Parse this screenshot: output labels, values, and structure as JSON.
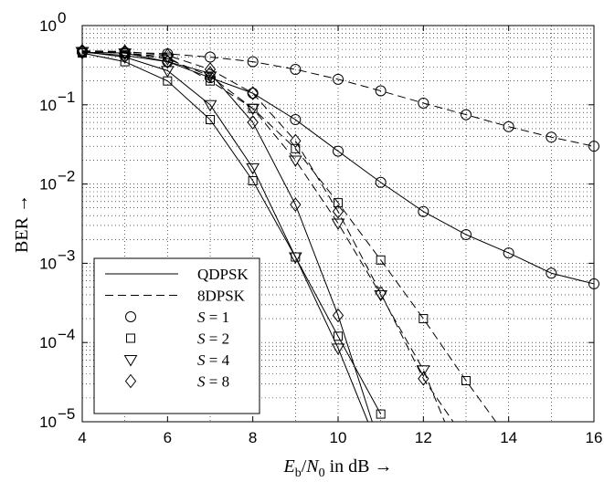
{
  "chart_data": {
    "type": "line",
    "xlabel": "E_b/N_0 in dB →",
    "xlabel_parts": {
      "e": "E",
      "e_sub": "b",
      "slash": "/",
      "n": "N",
      "n_sub": "0",
      "rest": " in dB →"
    },
    "ylabel": "BER →",
    "xlim": [
      4,
      16
    ],
    "ylim": [
      1e-05,
      1
    ],
    "yscale": "log",
    "grid": true,
    "legend_position": "bottom-left",
    "x_ticks": [
      "4",
      "6",
      "8",
      "10",
      "12",
      "14",
      "16"
    ],
    "y_ticks": [
      {
        "base": "10",
        "exp": "0"
      },
      {
        "base": "10",
        "exp": "−1"
      },
      {
        "base": "10",
        "exp": "−2"
      },
      {
        "base": "10",
        "exp": "−3"
      },
      {
        "base": "10",
        "exp": "−4"
      },
      {
        "base": "10",
        "exp": "−5"
      }
    ],
    "legend": {
      "line_styles": [
        {
          "label": "QDPSK",
          "dash": "solid"
        },
        {
          "label": "8DPSK",
          "dash": "dashed"
        }
      ],
      "markers": [
        {
          "symbol": "S",
          "eq": " = ",
          "value": "1",
          "marker": "circle"
        },
        {
          "symbol": "S",
          "eq": " = ",
          "value": "2",
          "marker": "square"
        },
        {
          "symbol": "S",
          "eq": " = ",
          "value": "4",
          "marker": "triangle"
        },
        {
          "symbol": "S",
          "eq": " = ",
          "value": "8",
          "marker": "diamond"
        }
      ]
    },
    "series": [
      {
        "modulation": "QDPSK",
        "S": 1,
        "dash": "solid",
        "marker": "circle",
        "x": [
          4,
          5,
          6,
          7,
          8,
          9,
          10,
          11,
          12,
          13,
          14,
          15,
          16
        ],
        "y": [
          0.46,
          0.42,
          0.35,
          0.22,
          0.14,
          0.065,
          0.026,
          0.0105,
          0.0045,
          0.0023,
          0.00135,
          0.00075,
          0.00055
        ]
      },
      {
        "modulation": "QDPSK",
        "S": 2,
        "dash": "solid",
        "marker": "square",
        "x": [
          4,
          5,
          6,
          7,
          8,
          9,
          10,
          11
        ],
        "y": [
          0.45,
          0.35,
          0.2,
          0.065,
          0.011,
          0.0012,
          0.00012,
          1.25e-05
        ]
      },
      {
        "modulation": "QDPSK",
        "S": 4,
        "dash": "solid",
        "marker": "triangle",
        "x": [
          4,
          5,
          6,
          7,
          8,
          9,
          10,
          10.7
        ],
        "y": [
          0.47,
          0.4,
          0.27,
          0.1,
          0.016,
          0.0012,
          8.5e-05,
          1e-05
        ]
      },
      {
        "modulation": "QDPSK",
        "S": 8,
        "dash": "solid",
        "marker": "diamond",
        "x": [
          4,
          5,
          6,
          7,
          8,
          9,
          10,
          10.8
        ],
        "y": [
          0.46,
          0.45,
          0.35,
          0.25,
          0.06,
          0.0055,
          0.00022,
          1e-05
        ]
      },
      {
        "modulation": "8DPSK",
        "S": 1,
        "dash": "dashed",
        "marker": "circle",
        "x": [
          4,
          5,
          6,
          7,
          8,
          9,
          10,
          11,
          12,
          13,
          14,
          15,
          16
        ],
        "y": [
          0.47,
          0.46,
          0.44,
          0.4,
          0.35,
          0.28,
          0.21,
          0.15,
          0.105,
          0.075,
          0.053,
          0.039,
          0.03
        ]
      },
      {
        "modulation": "8DPSK",
        "S": 2,
        "dash": "dashed",
        "marker": "square",
        "x": [
          4,
          5,
          6,
          7,
          8,
          9,
          10,
          11,
          12,
          13,
          13.7
        ],
        "y": [
          0.47,
          0.45,
          0.4,
          0.2,
          0.09,
          0.028,
          0.0058,
          0.0011,
          0.0002,
          3.3e-05,
          1e-05
        ]
      },
      {
        "modulation": "8DPSK",
        "S": 4,
        "dash": "dashed",
        "marker": "triangle",
        "x": [
          4,
          5,
          6,
          7,
          8,
          9,
          10,
          11,
          12,
          12.5
        ],
        "y": [
          0.47,
          0.45,
          0.38,
          0.23,
          0.09,
          0.02,
          0.0032,
          0.0004,
          4.5e-05,
          1e-05
        ]
      },
      {
        "modulation": "8DPSK",
        "S": 8,
        "dash": "dashed",
        "marker": "diamond",
        "x": [
          4,
          5,
          6,
          7,
          8,
          9,
          10,
          11,
          12,
          12.7
        ],
        "y": [
          0.48,
          0.47,
          0.42,
          0.28,
          0.14,
          0.035,
          0.0045,
          0.00042,
          3.5e-05,
          1e-05
        ]
      }
    ]
  }
}
